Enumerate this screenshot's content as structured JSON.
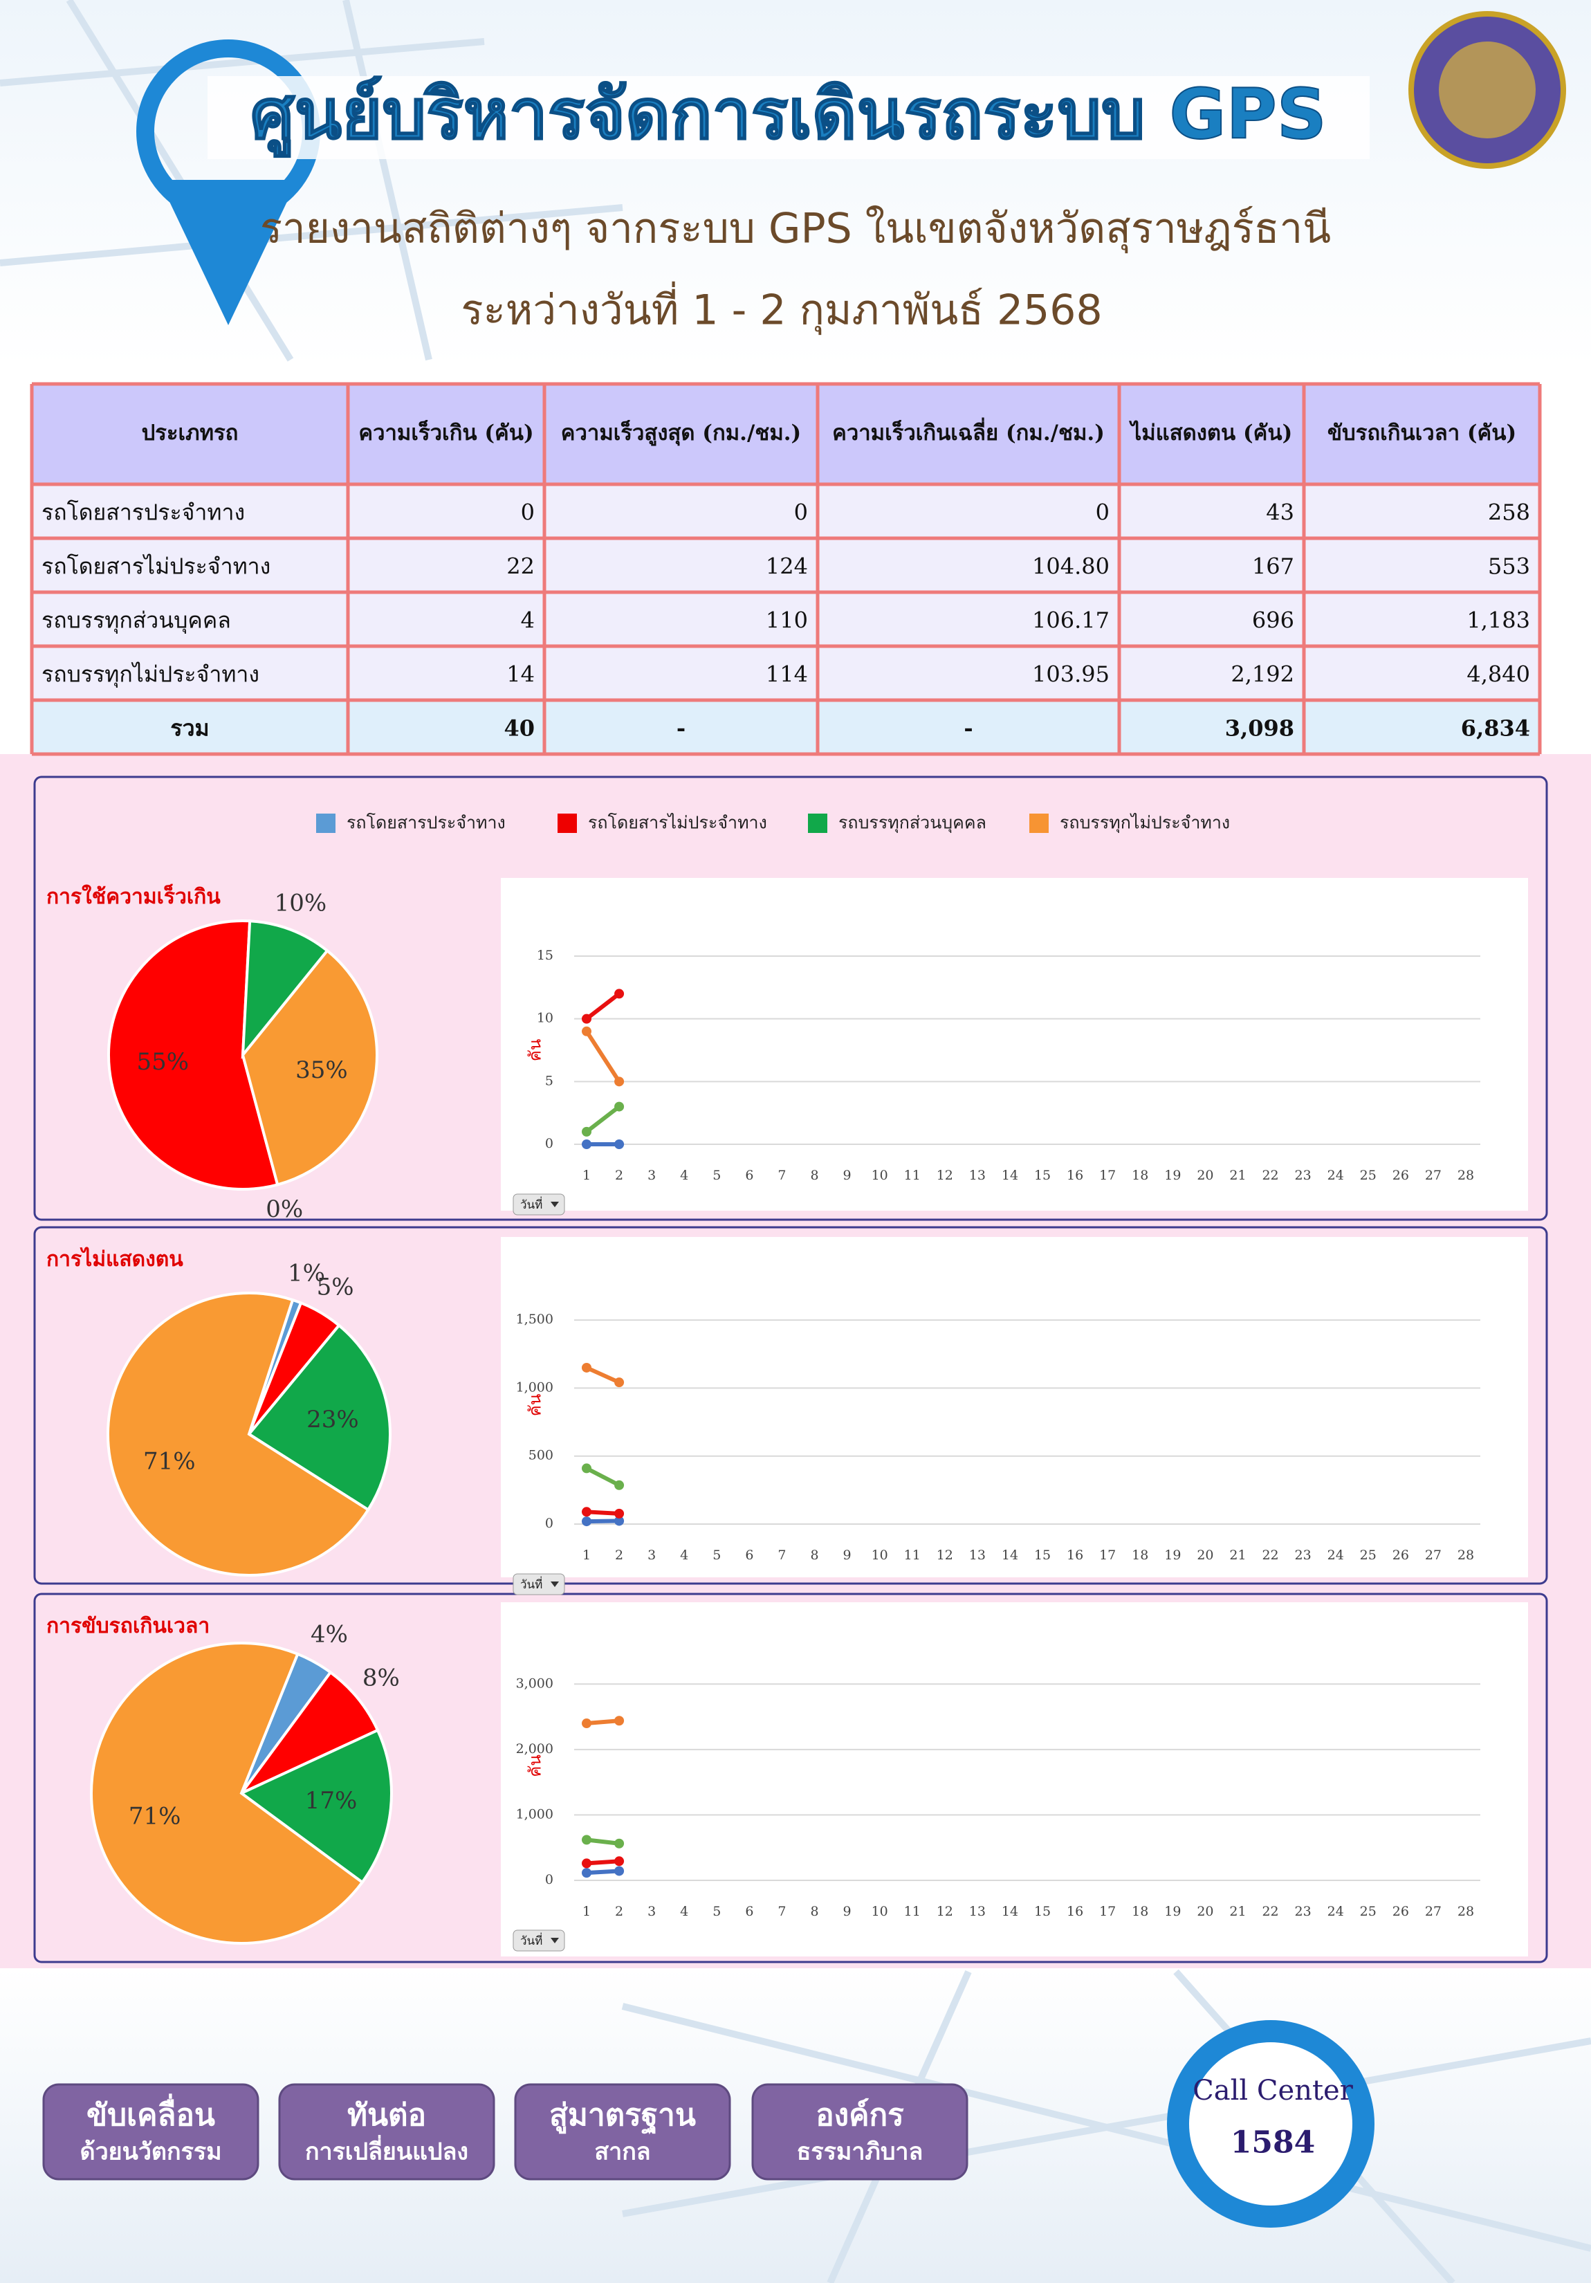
{
  "header": {
    "title": "ศูนย์บริหารจัดการเดินรถระบบ GPS",
    "subtitle": "รายงานสถิติต่างๆ จากระบบ GPS ในเขตจังหวัดสุราษฎร์ธานี",
    "period": "ระหว่างวันที่ 1 - 2 กุมภาพันธ์ 2568"
  },
  "table": {
    "columns": [
      "ประเภทรถ",
      "ความเร็วเกิน (คัน)",
      "ความเร็วสูงสุด (กม./ชม.)",
      "ความเร็วเกินเฉลี่ย (กม./ชม.)",
      "ไม่แสดงตน (คัน)",
      "ขับรถเกินเวลา (คัน)"
    ],
    "rows": [
      [
        "รถโดยสารประจำทาง",
        "0",
        "0",
        "0",
        "43",
        "258"
      ],
      [
        "รถโดยสารไม่ประจำทาง",
        "22",
        "124",
        "104.80",
        "167",
        "553"
      ],
      [
        "รถบรรทุกส่วนบุคคล",
        "4",
        "110",
        "106.17",
        "696",
        "1,183"
      ],
      [
        "รถบรรทุกไม่ประจำทาง",
        "14",
        "114",
        "103.95",
        "2,192",
        "4,840"
      ],
      [
        "รวม",
        "40",
        "-",
        "-",
        "3,098",
        "6,834"
      ]
    ]
  },
  "legend": {
    "items": [
      {
        "name": "รถโดยสารประจำทาง",
        "color": "#5b9bd5"
      },
      {
        "name": "รถโดยสารไม่ประจำทาง",
        "color": "#ee0000"
      },
      {
        "name": "รถบรรทุกส่วนบุคคล",
        "color": "#11a84a"
      },
      {
        "name": "รถบรรทุกไม่ประจำทาง",
        "color": "#f79433"
      }
    ]
  },
  "chart_data": [
    {
      "type": "pie",
      "title": "การใช้ความเร็วเกิน",
      "values": [
        0,
        55,
        10,
        35
      ],
      "value_labels": [
        "0%",
        "55%",
        "10%",
        "35%"
      ],
      "colors": [
        "#5b9bd5",
        "#ff0000",
        "#11a84a",
        "#f99a33"
      ]
    },
    {
      "type": "line",
      "y_label": "คัน",
      "control_label": "วันที่",
      "x": [
        1,
        2,
        3,
        4,
        5,
        6,
        7,
        8,
        9,
        10,
        11,
        12,
        13,
        14,
        15,
        16,
        17,
        18,
        19,
        20,
        21,
        22,
        23,
        24,
        25,
        26,
        27,
        28
      ],
      "xlim": [
        1,
        28
      ],
      "ylim": [
        0,
        15
      ],
      "yticks": [
        0,
        5,
        10,
        15
      ],
      "grid": true,
      "series": [
        {
          "color": "#4472c4",
          "values": [
            0,
            0,
            null,
            null,
            null,
            null,
            null,
            null,
            null,
            null,
            null,
            null,
            null,
            null,
            null,
            null,
            null,
            null,
            null,
            null,
            null,
            null,
            null,
            null,
            null,
            null,
            null,
            null
          ]
        },
        {
          "color": "#e81010",
          "values": [
            10,
            12,
            null,
            null,
            null,
            null,
            null,
            null,
            null,
            null,
            null,
            null,
            null,
            null,
            null,
            null,
            null,
            null,
            null,
            null,
            null,
            null,
            null,
            null,
            null,
            null,
            null,
            null
          ]
        },
        {
          "color": "#6ab04c",
          "values": [
            1,
            3,
            null,
            null,
            null,
            null,
            null,
            null,
            null,
            null,
            null,
            null,
            null,
            null,
            null,
            null,
            null,
            null,
            null,
            null,
            null,
            null,
            null,
            null,
            null,
            null,
            null,
            null
          ]
        },
        {
          "color": "#ed7d31",
          "values": [
            9,
            5,
            null,
            null,
            null,
            null,
            null,
            null,
            null,
            null,
            null,
            null,
            null,
            null,
            null,
            null,
            null,
            null,
            null,
            null,
            null,
            null,
            null,
            null,
            null,
            null,
            null,
            null
          ]
        }
      ]
    },
    {
      "type": "pie",
      "title": "การไม่แสดงตน",
      "values": [
        1,
        5,
        23,
        71
      ],
      "value_labels": [
        "1%",
        "5%",
        "23%",
        "71%"
      ],
      "colors": [
        "#5b9bd5",
        "#ff0000",
        "#11a84a",
        "#f99a33"
      ]
    },
    {
      "type": "line",
      "y_label": "คัน",
      "control_label": "วันที่",
      "x": [
        1,
        2,
        3,
        4,
        5,
        6,
        7,
        8,
        9,
        10,
        11,
        12,
        13,
        14,
        15,
        16,
        17,
        18,
        19,
        20,
        21,
        22,
        23,
        24,
        25,
        26,
        27,
        28
      ],
      "xlim": [
        1,
        28
      ],
      "ylim": [
        0,
        1750
      ],
      "yticks": [
        0,
        500,
        {
          "value": 1000,
          "label": "1,000"
        },
        {
          "value": 1500,
          "label": "1,500"
        }
      ],
      "grid": true,
      "series": [
        {
          "color": "#4472c4",
          "values": [
            20,
            23,
            null,
            null,
            null,
            null,
            null,
            null,
            null,
            null,
            null,
            null,
            null,
            null,
            null,
            null,
            null,
            null,
            null,
            null,
            null,
            null,
            null,
            null,
            null,
            null,
            null,
            null
          ]
        },
        {
          "color": "#e81010",
          "values": [
            90,
            77,
            null,
            null,
            null,
            null,
            null,
            null,
            null,
            null,
            null,
            null,
            null,
            null,
            null,
            null,
            null,
            null,
            null,
            null,
            null,
            null,
            null,
            null,
            null,
            null,
            null,
            null
          ]
        },
        {
          "color": "#6ab04c",
          "values": [
            410,
            286,
            null,
            null,
            null,
            null,
            null,
            null,
            null,
            null,
            null,
            null,
            null,
            null,
            null,
            null,
            null,
            null,
            null,
            null,
            null,
            null,
            null,
            null,
            null,
            null,
            null,
            null
          ]
        },
        {
          "color": "#ed7d31",
          "values": [
            1150,
            1042,
            null,
            null,
            null,
            null,
            null,
            null,
            null,
            null,
            null,
            null,
            null,
            null,
            null,
            null,
            null,
            null,
            null,
            null,
            null,
            null,
            null,
            null,
            null,
            null,
            null,
            null
          ]
        }
      ]
    },
    {
      "type": "pie",
      "title": "การขับรถเกินเวลา",
      "values": [
        4,
        8,
        17,
        71
      ],
      "value_labels": [
        "4%",
        "8%",
        "17%",
        "71%"
      ],
      "colors": [
        "#5b9bd5",
        "#ff0000",
        "#11a84a",
        "#f99a33"
      ]
    },
    {
      "type": "line",
      "y_label": "คัน",
      "control_label": "วันที่",
      "x": [
        1,
        2,
        3,
        4,
        5,
        6,
        7,
        8,
        9,
        10,
        11,
        12,
        13,
        14,
        15,
        16,
        17,
        18,
        19,
        20,
        21,
        22,
        23,
        24,
        25,
        26,
        27,
        28
      ],
      "xlim": [
        1,
        28
      ],
      "ylim": [
        0,
        3500
      ],
      "yticks": [
        0,
        {
          "value": 1000,
          "label": "1,000"
        },
        {
          "value": 2000,
          "label": "2,000"
        },
        {
          "value": 3000,
          "label": "3,000"
        }
      ],
      "grid": true,
      "series": [
        {
          "color": "#4472c4",
          "values": [
            115,
            143,
            null,
            null,
            null,
            null,
            null,
            null,
            null,
            null,
            null,
            null,
            null,
            null,
            null,
            null,
            null,
            null,
            null,
            null,
            null,
            null,
            null,
            null,
            null,
            null,
            null,
            null
          ]
        },
        {
          "color": "#e81010",
          "values": [
            260,
            293,
            null,
            null,
            null,
            null,
            null,
            null,
            null,
            null,
            null,
            null,
            null,
            null,
            null,
            null,
            null,
            null,
            null,
            null,
            null,
            null,
            null,
            null,
            null,
            null,
            null,
            null
          ]
        },
        {
          "color": "#6ab04c",
          "values": [
            620,
            563,
            null,
            null,
            null,
            null,
            null,
            null,
            null,
            null,
            null,
            null,
            null,
            null,
            null,
            null,
            null,
            null,
            null,
            null,
            null,
            null,
            null,
            null,
            null,
            null,
            null,
            null
          ]
        },
        {
          "color": "#ed7d31",
          "values": [
            2400,
            2440,
            null,
            null,
            null,
            null,
            null,
            null,
            null,
            null,
            null,
            null,
            null,
            null,
            null,
            null,
            null,
            null,
            null,
            null,
            null,
            null,
            null,
            null,
            null,
            null,
            null,
            null
          ]
        }
      ]
    }
  ],
  "footer": {
    "buttons": [
      {
        "top": "ขับเคลื่อน",
        "bottom": "ด้วยนวัตกรรม"
      },
      {
        "top": "ทันต่อ",
        "bottom": "การเปลี่ยนแปลง"
      },
      {
        "top": "สู่มาตรฐาน",
        "bottom": "สากล"
      },
      {
        "top": "องค์กร",
        "bottom": "ธรรมาภิบาล"
      }
    ],
    "call_center": "Call Center",
    "call_number": "1584"
  }
}
